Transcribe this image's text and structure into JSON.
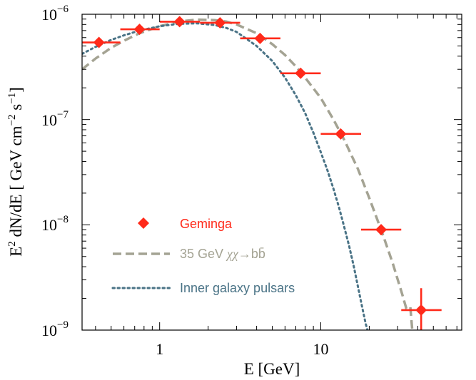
{
  "chart_data": {
    "type": "scatter",
    "xlabel": "E [GeV]",
    "ylabel": "E² dN/dE  [ GeV cm⁻² s⁻¹]",
    "ylabel_parts": {
      "base1": "E",
      "exp1": "2",
      "mid": " dN/dE  [ GeV cm",
      "exp2": "−2",
      "s": " s",
      "exp3": "−1",
      "end": "]"
    },
    "x_scale": "log",
    "y_scale": "log",
    "xlim": [
      0.33,
      75
    ],
    "ylim": [
      1e-09,
      1e-06
    ],
    "x_ticks": [
      {
        "value": 1,
        "label": "1"
      },
      {
        "value": 10,
        "label": "10"
      }
    ],
    "y_ticks": [
      {
        "value": 1e-09,
        "base": "10",
        "exp": "−9"
      },
      {
        "value": 1e-08,
        "base": "10",
        "exp": "−8"
      },
      {
        "value": 1e-07,
        "base": "10",
        "exp": "−7"
      },
      {
        "value": 1e-06,
        "base": "10",
        "exp": "−6"
      }
    ],
    "grid": false,
    "legend_position": "lower-left",
    "series": [
      {
        "name": "Geminga",
        "kind": "points",
        "color": "#ff2a1a",
        "points": [
          {
            "x": 0.42,
            "y": 5.4e-07,
            "xlo": 0.31,
            "xhi": 0.57,
            "ylo": 5e-07,
            "yhi": 5.8e-07
          },
          {
            "x": 0.75,
            "y": 7.2e-07,
            "xlo": 0.57,
            "xhi": 1.0,
            "ylo": 6.8e-07,
            "yhi": 7.6e-07
          },
          {
            "x": 1.33,
            "y": 8.5e-07,
            "xlo": 1.0,
            "xhi": 1.78,
            "ylo": 8.1e-07,
            "yhi": 8.9e-07
          },
          {
            "x": 2.37,
            "y": 8.3e-07,
            "xlo": 1.78,
            "xhi": 3.16,
            "ylo": 7.9e-07,
            "yhi": 8.7e-07
          },
          {
            "x": 4.2,
            "y": 5.9e-07,
            "xlo": 3.16,
            "xhi": 5.62,
            "ylo": 5.6e-07,
            "yhi": 6.2e-07
          },
          {
            "x": 7.5,
            "y": 2.75e-07,
            "xlo": 5.62,
            "xhi": 10.0,
            "ylo": 2.6e-07,
            "yhi": 2.9e-07
          },
          {
            "x": 13.3,
            "y": 7.3e-08,
            "xlo": 10.0,
            "xhi": 17.8,
            "ylo": 6.8e-08,
            "yhi": 7.8e-08
          },
          {
            "x": 23.7,
            "y": 9e-09,
            "xlo": 17.8,
            "xhi": 31.6,
            "ylo": 8e-09,
            "yhi": 1e-08
          },
          {
            "x": 42.0,
            "y": 1.55e-09,
            "xlo": 31.6,
            "xhi": 56.2,
            "ylo": 1e-09,
            "yhi": 2.5e-09
          }
        ]
      },
      {
        "name": "35 GeV χχ→bb̄",
        "name_parts": {
          "prefix": "35 GeV ",
          "math": "χχ",
          "arrow": "→",
          "bb": "bb̄"
        },
        "kind": "line",
        "style": "dashed",
        "color": "#a4a393",
        "points": [
          [
            0.33,
            3e-07
          ],
          [
            0.4,
            3.8e-07
          ],
          [
            0.5,
            4.8e-07
          ],
          [
            0.6,
            5.6e-07
          ],
          [
            0.75,
            6.6e-07
          ],
          [
            1.0,
            7.7e-07
          ],
          [
            1.3,
            8.5e-07
          ],
          [
            1.7,
            8.9e-07
          ],
          [
            2.2,
            8.8e-07
          ],
          [
            2.6,
            8.5e-07
          ],
          [
            3.0,
            8e-07
          ],
          [
            4.0,
            6.6e-07
          ],
          [
            5.0,
            5.2e-07
          ],
          [
            6.0,
            4.1e-07
          ],
          [
            7.0,
            3.2e-07
          ],
          [
            8.0,
            2.5e-07
          ],
          [
            10.0,
            1.6e-07
          ],
          [
            12.0,
            1e-07
          ],
          [
            14.0,
            6.4e-08
          ],
          [
            17.0,
            3.4e-08
          ],
          [
            20.0,
            1.8e-08
          ],
          [
            24.0,
            8.5e-09
          ],
          [
            28.0,
            4.3e-09
          ],
          [
            32.0,
            2.2e-09
          ],
          [
            34.0,
            1.6e-09
          ],
          [
            36.0,
            1.65e-09
          ],
          [
            37.0,
            1e-09
          ]
        ]
      },
      {
        "name": "Inner galaxy pulsars",
        "kind": "line",
        "style": "dotted",
        "color": "#4a7386",
        "points": [
          [
            0.33,
            4.2e-07
          ],
          [
            0.4,
            4.9e-07
          ],
          [
            0.5,
            5.7e-07
          ],
          [
            0.6,
            6.3e-07
          ],
          [
            0.75,
            7e-07
          ],
          [
            1.0,
            7.7e-07
          ],
          [
            1.3,
            8.1e-07
          ],
          [
            1.7,
            8.2e-07
          ],
          [
            2.2,
            7.9e-07
          ],
          [
            2.6,
            7.4e-07
          ],
          [
            3.0,
            6.8e-07
          ],
          [
            4.0,
            5e-07
          ],
          [
            5.0,
            3.6e-07
          ],
          [
            6.0,
            2.5e-07
          ],
          [
            7.0,
            1.7e-07
          ],
          [
            8.0,
            1.15e-07
          ],
          [
            9.0,
            7.5e-08
          ],
          [
            10.0,
            4.9e-08
          ],
          [
            11.0,
            3.3e-08
          ],
          [
            12.0,
            2.2e-08
          ],
          [
            13.0,
            1.45e-08
          ],
          [
            14.0,
            9.5e-09
          ],
          [
            15.0,
            6.3e-09
          ],
          [
            16.0,
            4.1e-09
          ],
          [
            17.0,
            2.6e-09
          ],
          [
            18.0,
            1.7e-09
          ],
          [
            19.0,
            1.15e-09
          ],
          [
            19.5,
            1e-09
          ]
        ]
      }
    ]
  }
}
